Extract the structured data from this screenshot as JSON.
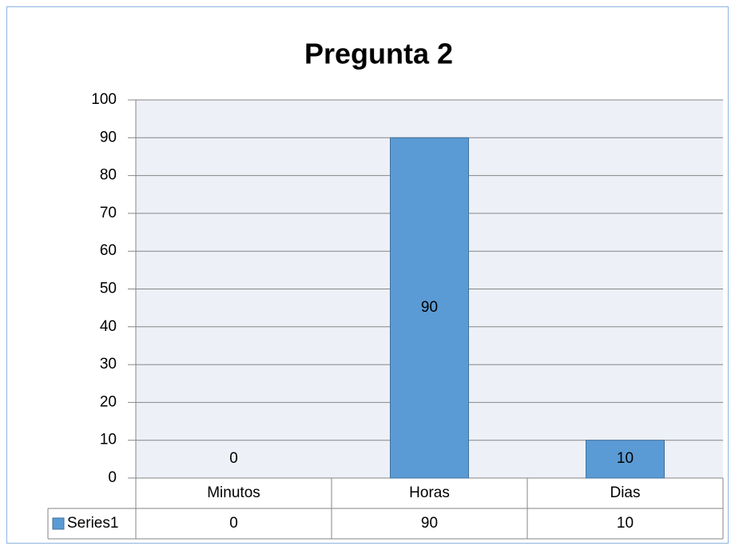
{
  "chart_data": {
    "type": "bar",
    "title": "Pregunta 2",
    "categories": [
      "Minutos",
      "Horas",
      "Dias"
    ],
    "series": [
      {
        "name": "Series1",
        "color": "#5b9bd5",
        "values": [
          0,
          90,
          10
        ]
      }
    ],
    "ylim": [
      0,
      100
    ],
    "yticks": [
      0,
      10,
      20,
      30,
      40,
      50,
      60,
      70,
      80,
      90,
      100
    ],
    "grid": true
  }
}
